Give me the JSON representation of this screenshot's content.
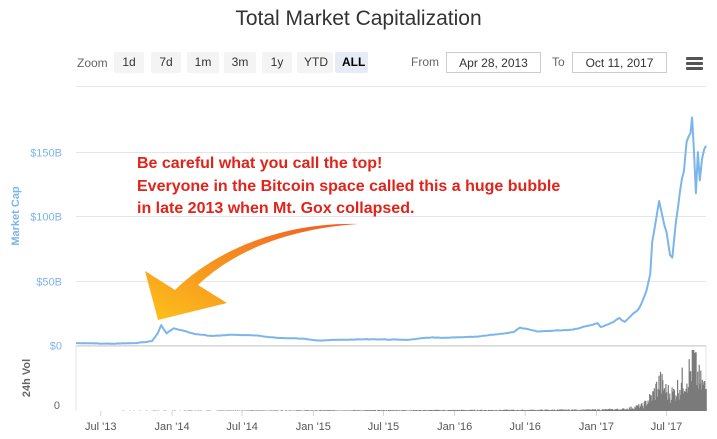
{
  "title": "Total Market Capitalization",
  "zoom": {
    "label": "Zoom",
    "buttons": [
      "1d",
      "7d",
      "1m",
      "3m",
      "1y",
      "YTD",
      "ALL"
    ],
    "active": "ALL"
  },
  "range": {
    "from_label": "From",
    "from_value": "Apr 28, 2013",
    "to_label": "To",
    "to_value": "Oct 11, 2017"
  },
  "annotation": {
    "lines": [
      "Be careful what you call the top!",
      "Everyone in the Bitcoin space called this a huge bubble",
      "in late 2013 when Mt. Gox collapsed."
    ],
    "color": "#e2231a"
  },
  "colors": {
    "market_cap_line": "#7cb5ec",
    "volume_bars": "#7a7a7a",
    "arrow_start": "#f15a24",
    "arrow_end": "#fcc21b"
  },
  "chart_data": [
    {
      "type": "line",
      "ylabel": "Market Cap",
      "y_ticks": [
        0,
        50,
        100,
        150
      ],
      "y_tick_labels": [
        "$0",
        "$50B",
        "$100B",
        "$150B"
      ],
      "ylim": [
        0,
        175
      ],
      "x_tick_labels": [
        "Jul '13",
        "Jan '14",
        "Jul '14",
        "Jan '15",
        "Jul '15",
        "Jan '16",
        "Jul '16",
        "Jan '17",
        "Jul '17"
      ],
      "x_ticks": [
        "2013-07-01",
        "2014-01-01",
        "2014-07-01",
        "2015-01-01",
        "2015-07-01",
        "2016-01-01",
        "2016-07-01",
        "2017-01-01",
        "2017-07-01"
      ],
      "xlim": [
        "2013-04-28",
        "2017-10-11"
      ],
      "grid": true,
      "x": [
        "2013-04-28",
        "2013-06-01",
        "2013-08-01",
        "2013-10-01",
        "2013-11-10",
        "2013-11-25",
        "2013-12-04",
        "2013-12-18",
        "2014-01-05",
        "2014-02-01",
        "2014-03-01",
        "2014-04-15",
        "2014-06-01",
        "2014-08-01",
        "2014-10-01",
        "2014-12-01",
        "2015-01-15",
        "2015-03-01",
        "2015-06-01",
        "2015-09-01",
        "2015-11-04",
        "2015-12-01",
        "2016-03-01",
        "2016-06-01",
        "2016-06-18",
        "2016-08-01",
        "2016-11-01",
        "2017-01-04",
        "2017-01-12",
        "2017-02-15",
        "2017-03-01",
        "2017-03-15",
        "2017-04-01",
        "2017-04-20",
        "2017-05-01",
        "2017-05-10",
        "2017-05-20",
        "2017-05-25",
        "2017-06-01",
        "2017-06-12",
        "2017-06-20",
        "2017-07-01",
        "2017-07-10",
        "2017-07-16",
        "2017-07-25",
        "2017-08-05",
        "2017-08-15",
        "2017-08-22",
        "2017-09-01",
        "2017-09-05",
        "2017-09-10",
        "2017-09-15",
        "2017-09-20",
        "2017-09-25",
        "2017-10-01",
        "2017-10-06",
        "2017-10-11"
      ],
      "series": [
        {
          "values": [
            1.5,
            1.3,
            1.0,
            1.5,
            3.0,
            9.0,
            15.5,
            9.0,
            13.0,
            11.0,
            8.5,
            7.0,
            8.0,
            7.5,
            5.5,
            5.0,
            3.5,
            4.0,
            4.5,
            4.0,
            6.0,
            5.5,
            6.5,
            10.0,
            13.5,
            10.5,
            12.0,
            17.0,
            14.0,
            18.0,
            21.0,
            18.0,
            23.0,
            28.0,
            35.0,
            42.0,
            55.0,
            80.0,
            92.0,
            112.0,
            101.0,
            88.0,
            70.0,
            68.0,
            95.0,
            120.0,
            135.0,
            158.0,
            165.0,
            177.0,
            150.0,
            118.0,
            150.0,
            128.0,
            145.0,
            152.0,
            155.0
          ]
        }
      ]
    },
    {
      "type": "bar",
      "ylabel": "24h Vol",
      "y_tick_labels": [
        "0"
      ],
      "ylim": [
        0,
        10
      ],
      "note": "Daily 24h volume; near zero until 2017, then rising sharply",
      "x": [
        "2013-04-28",
        "2016-06-18",
        "2017-01-04",
        "2017-03-15",
        "2017-05-01",
        "2017-05-25",
        "2017-06-12",
        "2017-07-01",
        "2017-07-16",
        "2017-08-01",
        "2017-08-15",
        "2017-09-01",
        "2017-09-05",
        "2017-09-15",
        "2017-09-25",
        "2017-10-11"
      ],
      "values": [
        0.02,
        0.15,
        0.2,
        0.3,
        0.9,
        2.5,
        4.6,
        3.0,
        2.8,
        4.0,
        5.2,
        6.5,
        9.5,
        6.0,
        4.5,
        3.5
      ]
    }
  ]
}
